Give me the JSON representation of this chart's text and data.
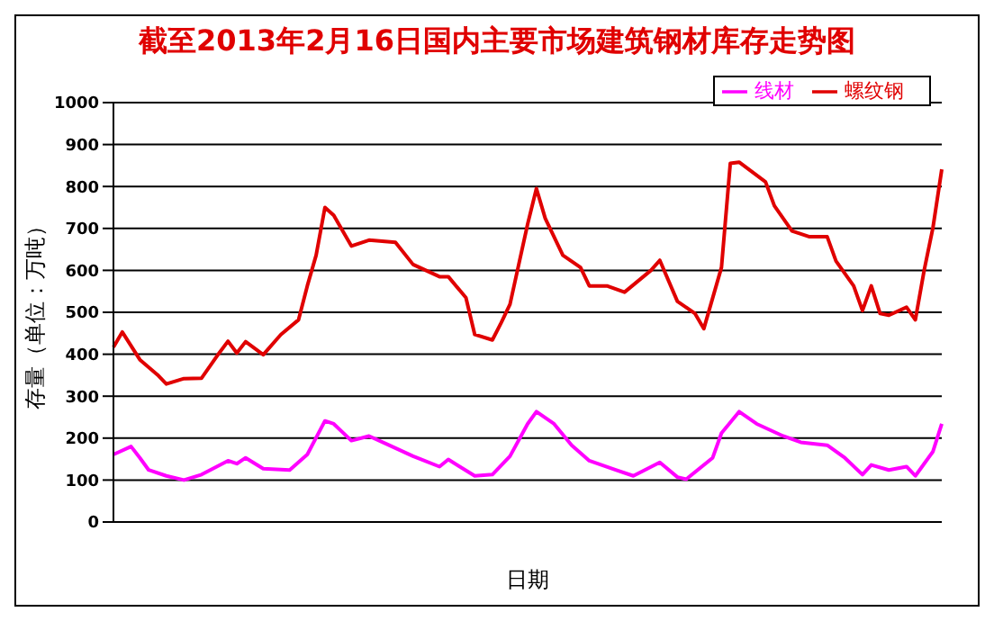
{
  "chart_data": {
    "type": "line",
    "title": "截至2013年2月16日国内主要市场建筑钢材库存走势图",
    "xlabel": "日期",
    "ylabel": "存量（单位：万吨）",
    "categories": [
      null,
      null,
      null,
      null,
      null,
      null,
      null,
      null,
      null,
      null,
      null,
      null,
      null,
      null,
      null,
      null,
      null,
      null,
      null,
      null,
      null,
      null,
      null,
      null,
      null,
      null,
      null,
      null,
      null,
      null,
      null,
      null,
      null,
      null,
      null,
      null,
      null,
      null,
      null,
      null,
      null,
      null,
      null,
      null,
      null,
      null,
      null,
      null,
      null,
      null,
      null,
      null,
      null,
      null,
      null,
      null,
      null,
      null,
      null,
      null,
      null,
      null,
      null,
      null,
      null,
      null,
      null,
      null,
      null,
      null,
      null,
      null,
      null,
      null,
      null,
      null,
      null,
      null,
      null,
      null,
      null,
      null,
      null,
      null,
      null,
      null,
      null,
      null,
      null,
      null,
      null,
      null,
      null,
      null,
      null
    ],
    "series": [
      {
        "name": "螺纹钢",
        "color": "#e00000",
        "values": [
          417,
          453,
          null,
          387,
          null,
          351,
          329,
          null,
          342,
          null,
          343,
          null,
          403,
          431,
          403,
          430,
          null,
          399,
          null,
          447,
          null,
          482,
          563,
          636,
          750,
          731,
          null,
          658,
          null,
          672,
          null,
          null,
          667,
          null,
          614,
          null,
          null,
          585,
          585,
          null,
          535,
          447,
          null,
          434,
          475,
          519,
          null,
          710,
          795,
          724,
          null,
          636,
          null,
          607,
          563,
          null,
          563,
          null,
          548,
          null,
          null,
          600,
          624,
          null,
          526,
          null,
          497,
          461,
          null,
          607,
          855,
          858,
          null,
          null,
          811,
          754,
          null,
          694,
          null,
          680,
          null,
          680,
          622,
          null,
          563,
          504,
          563,
          497,
          493,
          null,
          512,
          482,
          600,
          702,
          841
        ]
      },
      {
        "name": "线材",
        "color": "#ff00ff",
        "values": [
          161,
          null,
          180,
          153,
          124,
          null,
          110,
          null,
          100,
          null,
          113,
          null,
          null,
          146,
          139,
          153,
          null,
          127,
          null,
          null,
          124,
          null,
          161,
          null,
          241,
          234,
          null,
          194,
          null,
          205,
          null,
          186,
          null,
          null,
          157,
          null,
          null,
          132,
          149,
          null,
          null,
          110,
          null,
          113,
          null,
          157,
          null,
          234,
          263,
          null,
          234,
          null,
          183,
          null,
          146,
          null,
          null,
          124,
          null,
          110,
          null,
          null,
          142,
          null,
          107,
          102,
          null,
          null,
          153,
          212,
          null,
          263,
          null,
          234,
          null,
          null,
          205,
          null,
          190,
          null,
          null,
          183,
          null,
          153,
          null,
          113,
          136,
          null,
          124,
          null,
          132,
          110,
          139,
          168,
          234
        ]
      }
    ],
    "ylim": [
      0,
      1000
    ],
    "yticks": [
      0,
      100,
      200,
      300,
      400,
      500,
      600,
      700,
      800,
      900,
      1000
    ],
    "grid": "y",
    "legend": "top right",
    "tick_labels": "y"
  }
}
